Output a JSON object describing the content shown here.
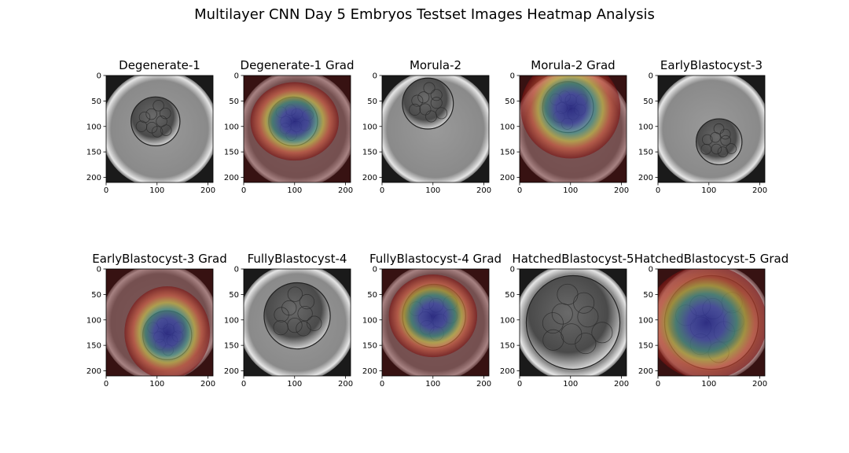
{
  "figure": {
    "title": "Multilayer CNN Day 5 Embryos Testset Images Heatmap Analysis"
  },
  "chart_data": {
    "type": "image_grid",
    "rows": 2,
    "cols": 5,
    "xlim": [
      0,
      210
    ],
    "ylim": [
      210,
      0
    ],
    "x_ticks": [
      0,
      100,
      200
    ],
    "y_ticks": [
      0,
      50,
      100,
      150,
      200
    ],
    "panels": [
      {
        "title": "Degenerate-1",
        "kind": "image",
        "embryo": {
          "cx": 97,
          "cy": 90,
          "r": 48
        }
      },
      {
        "title": "Degenerate-1 Grad",
        "kind": "heatmap",
        "embryo": {
          "cx": 97,
          "cy": 90,
          "r": 48
        },
        "focus": {
          "cx": 100,
          "cy": 90,
          "rx": 62,
          "ry": 55
        }
      },
      {
        "title": "Morula-2",
        "kind": "image",
        "embryo": {
          "cx": 90,
          "cy": 55,
          "r": 50
        }
      },
      {
        "title": "Morula-2 Grad",
        "kind": "heatmap",
        "embryo": {
          "cx": 95,
          "cy": 62,
          "r": 50
        },
        "focus": {
          "cx": 100,
          "cy": 65,
          "rx": 70,
          "ry": 70
        }
      },
      {
        "title": "EarlyBlastocyst-3",
        "kind": "image",
        "embryo": {
          "cx": 120,
          "cy": 130,
          "r": 45
        }
      },
      {
        "title": "EarlyBlastocyst-3 Grad",
        "kind": "heatmap",
        "embryo": {
          "cx": 120,
          "cy": 130,
          "r": 48
        },
        "focus": {
          "cx": 120,
          "cy": 125,
          "rx": 60,
          "ry": 65
        }
      },
      {
        "title": "FullyBlastocyst-4",
        "kind": "image",
        "embryo": {
          "cx": 105,
          "cy": 92,
          "r": 65
        }
      },
      {
        "title": "FullyBlastocyst-4 Grad",
        "kind": "heatmap",
        "embryo": {
          "cx": 102,
          "cy": 92,
          "r": 62
        },
        "focus": {
          "cx": 100,
          "cy": 92,
          "rx": 62,
          "ry": 58
        }
      },
      {
        "title": "HatchedBlastocyst-5",
        "kind": "image",
        "embryo": {
          "cx": 105,
          "cy": 105,
          "r": 92
        }
      },
      {
        "title": "HatchedBlastocyst-5 Grad",
        "kind": "heatmap",
        "embryo": {
          "cx": 105,
          "cy": 105,
          "r": 92
        },
        "focus": {
          "cx": 95,
          "cy": 105,
          "rx": 85,
          "ry": 80
        }
      }
    ]
  }
}
